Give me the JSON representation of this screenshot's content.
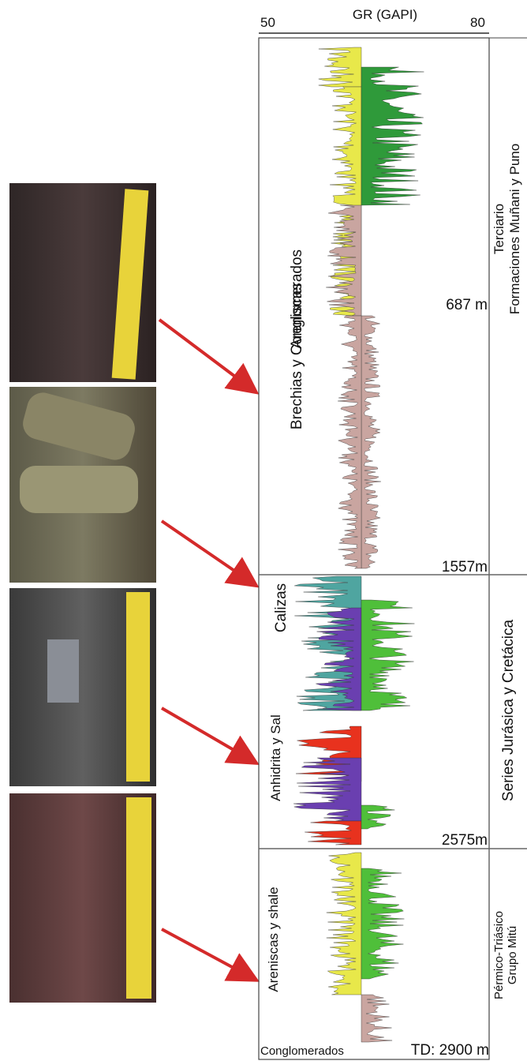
{
  "axis": {
    "label": "GR (GAPI)",
    "min": "50",
    "max": "80"
  },
  "lithology": [
    "Areniscas",
    "Brechias y Conglomerados",
    "Calizas",
    "Anhidrita y Sal",
    "Areniscas y shale",
    "Conglomerados"
  ],
  "depths": [
    "687 m",
    "1557m",
    "2575m",
    "TD: 2900 m"
  ],
  "formations": [
    {
      "lines": [
        "Terciario",
        "Formaciones Muñani y Puno"
      ]
    },
    {
      "lines": [
        "Series Jurásica y Cretácica"
      ]
    },
    {
      "lines": [
        "Pérmico-Triásico",
        "Grupo Mitú"
      ]
    }
  ]
}
